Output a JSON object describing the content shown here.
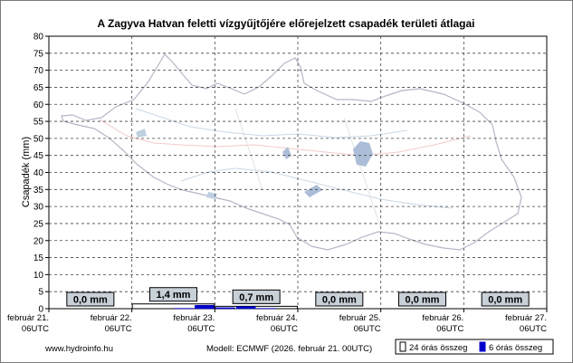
{
  "chart_data": {
    "type": "bar",
    "title": "A Zagyva Hatvan feletti vízgyűjtőjére előrejelzett csapadék területi átlagai",
    "ylabel": "Csapadék (mm)",
    "ylim": [
      0,
      80
    ],
    "ytick_step": 5,
    "grid": true,
    "x_ticks": [
      {
        "line1": "február 21.",
        "line2": "06UTC"
      },
      {
        "line1": "február 22.",
        "line2": "06UTC"
      },
      {
        "line1": "február 23.",
        "line2": "06UTC"
      },
      {
        "line1": "február 24.",
        "line2": "06UTC"
      },
      {
        "line1": "február 25.",
        "line2": "06UTC"
      },
      {
        "line1": "február 26.",
        "line2": "06UTC"
      },
      {
        "line1": "február 27.",
        "line2": "06UTC"
      }
    ],
    "series": [
      {
        "name": "24 órás összeg",
        "color": "#ffffff",
        "values": [
          0.0,
          1.4,
          0.7,
          0.0,
          0.0,
          0.0
        ]
      },
      {
        "name": "6 órás összeg",
        "color": "#0000cc",
        "values": [
          0.0,
          0.0,
          0.0,
          0.0,
          0.0,
          0.0,
          0.1,
          1.0,
          0.3,
          0.6,
          0.1,
          0.0,
          0.0,
          0.0,
          0.0,
          0.0,
          0.0,
          0.0,
          0.0,
          0.0,
          0.0,
          0.0,
          0.0,
          0.0
        ]
      }
    ],
    "data_labels": [
      "0,0 mm",
      "1,4 mm",
      "0,7 mm",
      "0,0 mm",
      "0,0 mm",
      "0,0 mm"
    ],
    "legend_placement": "bottom-right",
    "background_map": "catchment-map"
  },
  "footer": {
    "site": "www.hydroinfo.hu",
    "model": "Modell: ECMWF (2026. február 21. 00UTC)"
  }
}
